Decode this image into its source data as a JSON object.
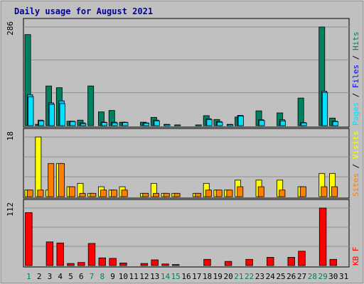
{
  "chart_data": {
    "type": "bar",
    "title": "Daily usage for August 2021",
    "days": [
      "1",
      "2",
      "3",
      "4",
      "5",
      "6",
      "7",
      "8",
      "9",
      "10",
      "11",
      "12",
      "13",
      "14",
      "15",
      "16",
      "17",
      "18",
      "19",
      "20",
      "21",
      "22",
      "23",
      "24",
      "25",
      "26",
      "27",
      "28",
      "29",
      "30",
      "31"
    ],
    "weekend_days": [
      "1",
      "7",
      "8",
      "14",
      "15",
      "21",
      "22",
      "28",
      "29"
    ],
    "colors": {
      "title": "#0000a0",
      "hits": "#008060",
      "files": "#00c0ff",
      "pages": "#00e0ff",
      "visits": "#ffff00",
      "sites": "#ff8000",
      "kbytes": "#ff0000",
      "weekday_label": "#000000",
      "weekend_label": "#00805c",
      "plot_bg": "#c0c0c0",
      "frame_bg": "#c0c0c0"
    },
    "panels": [
      {
        "id": "hits_files_pages",
        "max_label": "286",
        "ymax": 286,
        "legend": [
          {
            "text": "Pages",
            "color": "#00e0ff"
          },
          {
            "text": " / ",
            "color": "#000000"
          },
          {
            "text": "Files",
            "color": "#0000ff"
          },
          {
            "text": " / ",
            "color": "#000000"
          },
          {
            "text": "Hits",
            "color": "#008060"
          }
        ],
        "series": [
          {
            "name": "Hits",
            "color": "#008060",
            "values": [
              264,
              4,
              115,
              110,
              13,
              16,
              115,
              40,
              44,
              10,
              0,
              10,
              24,
              0,
              0,
              0,
              0,
              29,
              18,
              0,
              25,
              0,
              43,
              0,
              37,
              0,
              80,
              0,
              286,
              22,
              0
            ]
          },
          {
            "name": "Files",
            "color": "#00c0ff",
            "values": [
              90,
              16,
              66,
              72,
              13,
              8,
              0,
              10,
              10,
              10,
              0,
              8,
              16,
              4,
              2,
              0,
              2,
              20,
              12,
              4,
              30,
              0,
              17,
              0,
              17,
              0,
              9,
              0,
              100,
              13,
              0
            ]
          },
          {
            "name": "Pages",
            "color": "#00e0ff",
            "values": [
              84,
              14,
              62,
              64,
              12,
              6,
              0,
              9,
              8,
              9,
              0,
              7,
              14,
              3,
              2,
              0,
              2,
              18,
              10,
              3,
              28,
              0,
              15,
              0,
              14,
              0,
              8,
              0,
              96,
              12,
              0
            ]
          }
        ]
      },
      {
        "id": "sites_visits",
        "max_label": "18",
        "ymax": 18,
        "legend": [
          {
            "text": "Sites",
            "color": "#ff8000"
          },
          {
            "text": " / ",
            "color": "#000000"
          },
          {
            "text": "Visits",
            "color": "#ffff00"
          }
        ],
        "series": [
          {
            "name": "Visits",
            "color": "#ffff00",
            "values": [
              2,
              18,
              2,
              10,
              3,
              4,
              1,
              3,
              2,
              3,
              0,
              1,
              4,
              1,
              1,
              0,
              1,
              4,
              2,
              2,
              5,
              0,
              5,
              0,
              5,
              0,
              3,
              0,
              7,
              7,
              0
            ]
          },
          {
            "name": "Sites",
            "color": "#ff8000",
            "values": [
              2,
              2,
              10,
              10,
              3,
              1,
              1,
              2,
              2,
              2,
              0,
              1,
              1,
              1,
              1,
              0,
              1,
              2,
              2,
              2,
              3,
              0,
              3,
              0,
              2,
              0,
              3,
              0,
              3,
              3,
              0
            ]
          }
        ]
      },
      {
        "id": "kbytes",
        "max_label": "112",
        "ymax": 112,
        "legend": [
          {
            "text": "KB F",
            "color": "#ff0000"
          }
        ],
        "series": [
          {
            "name": "KBytes",
            "color": "#ff0000",
            "values": [
              103,
              0,
              46,
              44,
              4,
              6,
              43,
              15,
              14,
              5,
              0,
              4,
              11,
              3,
              2,
              0,
              0,
              12,
              0,
              8,
              0,
              12,
              0,
              16,
              0,
              16,
              28,
              0,
              112,
              12,
              0
            ]
          }
        ]
      }
    ]
  }
}
